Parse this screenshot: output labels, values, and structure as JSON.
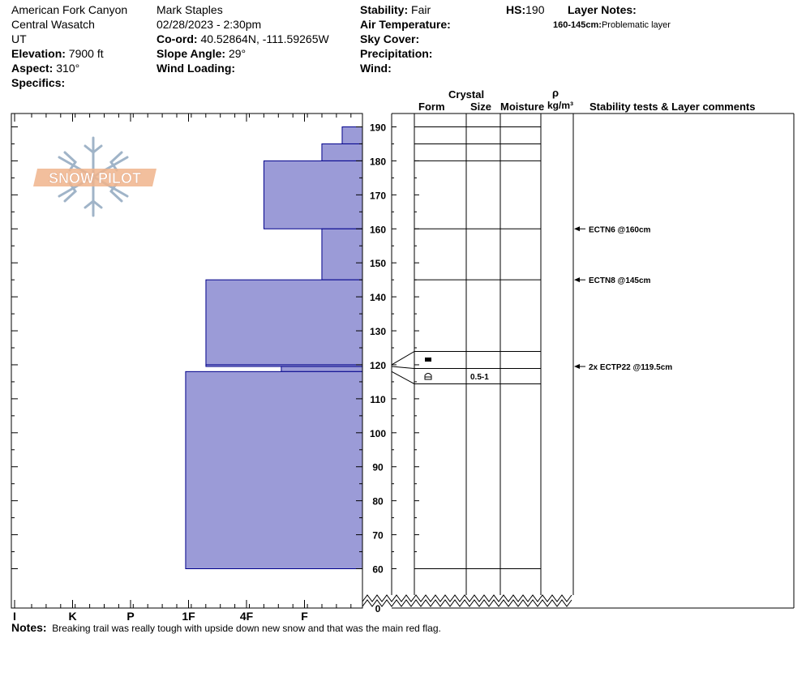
{
  "header": {
    "location": "American Fork Canyon",
    "range": "Central Wasatch",
    "state": "UT",
    "elevation_label": "Elevation:",
    "elevation_value": "7900 ft",
    "aspect_label": "Aspect:",
    "aspect_value": "310°",
    "specifics_label": "Specifics:",
    "observer": "Mark Staples",
    "datetime": "02/28/2023 - 2:30pm",
    "coord_label": "Co-ord:",
    "coord_value": "40.52864N, -111.59265W",
    "slope_label": "Slope Angle:",
    "slope_value": "29°",
    "wind_loading_label": "Wind Loading:",
    "stability_label": "Stability:",
    "stability_value": "Fair",
    "air_temp_label": "Air Temperature:",
    "sky_cover_label": "Sky Cover:",
    "precip_label": "Precipitation:",
    "wind_label": "Wind:",
    "hs_label": "HS:",
    "hs_value": "190",
    "layer_notes_label": "Layer Notes:",
    "layer_note_range": "160-145cm:",
    "layer_note_text": "Problematic layer"
  },
  "columns": {
    "crystal": "Crystal",
    "form": "Form",
    "size": "Size",
    "moisture": "Moisture",
    "rho": "ρ",
    "density_unit": "kg/m³",
    "comments": "Stability tests & Layer comments"
  },
  "logo_text": "SNOW PILOT",
  "notes": {
    "label": "Notes:",
    "text": "Breaking trail was really tough with upside down new snow and that was the main red flag."
  },
  "colors": {
    "profile_fill": "#9b9bd7",
    "profile_stroke": "#00008b",
    "logo_orange": "#f0b48c",
    "logo_blue": "#a0b4c8"
  },
  "chart_data": {
    "type": "snow-profile",
    "hardness_scale": [
      "I",
      "K",
      "P",
      "1F",
      "4F",
      "F"
    ],
    "hardness_index": {
      "F": 1,
      "4F": 2,
      "1F": 3,
      "P": 4,
      "K": 5,
      "I": 6
    },
    "height_ticks": [
      190,
      180,
      170,
      160,
      150,
      140,
      130,
      120,
      110,
      100,
      90,
      80,
      70,
      60,
      0
    ],
    "axis_break": [
      0,
      60
    ],
    "hs": 190,
    "hardness_layers": [
      {
        "top": 190,
        "bottom": 185,
        "hardness": 0.35
      },
      {
        "top": 185,
        "bottom": 180,
        "hardness": 0.7
      },
      {
        "top": 180,
        "bottom": 160,
        "hardness": 1.7
      },
      {
        "top": 160,
        "bottom": 145,
        "hardness": 0.7
      },
      {
        "top": 145,
        "bottom": 120,
        "hardness": 2.7
      },
      {
        "top": 120,
        "bottom": 119.5,
        "hardness": 2.7
      },
      {
        "top": 119.5,
        "bottom": 118,
        "hardness": 1.4
      },
      {
        "top": 118,
        "bottom": 60,
        "hardness": 3.05
      }
    ],
    "layer_boundaries": [
      190,
      185,
      180,
      160,
      145,
      120,
      119.5,
      118,
      60
    ],
    "crystal_layers": [
      {
        "top": 120,
        "bottom": 119.5,
        "form": "crust",
        "size": ""
      },
      {
        "top": 119.5,
        "bottom": 118,
        "form": "depth-hoar",
        "size": "0.5-1"
      }
    ],
    "stability_tests": [
      {
        "depth": 160,
        "label": "ECTN6 @160cm"
      },
      {
        "depth": 145,
        "label": "ECTN8 @145cm"
      },
      {
        "depth": 119.5,
        "label": "2x ECTP22 @119.5cm"
      }
    ]
  }
}
